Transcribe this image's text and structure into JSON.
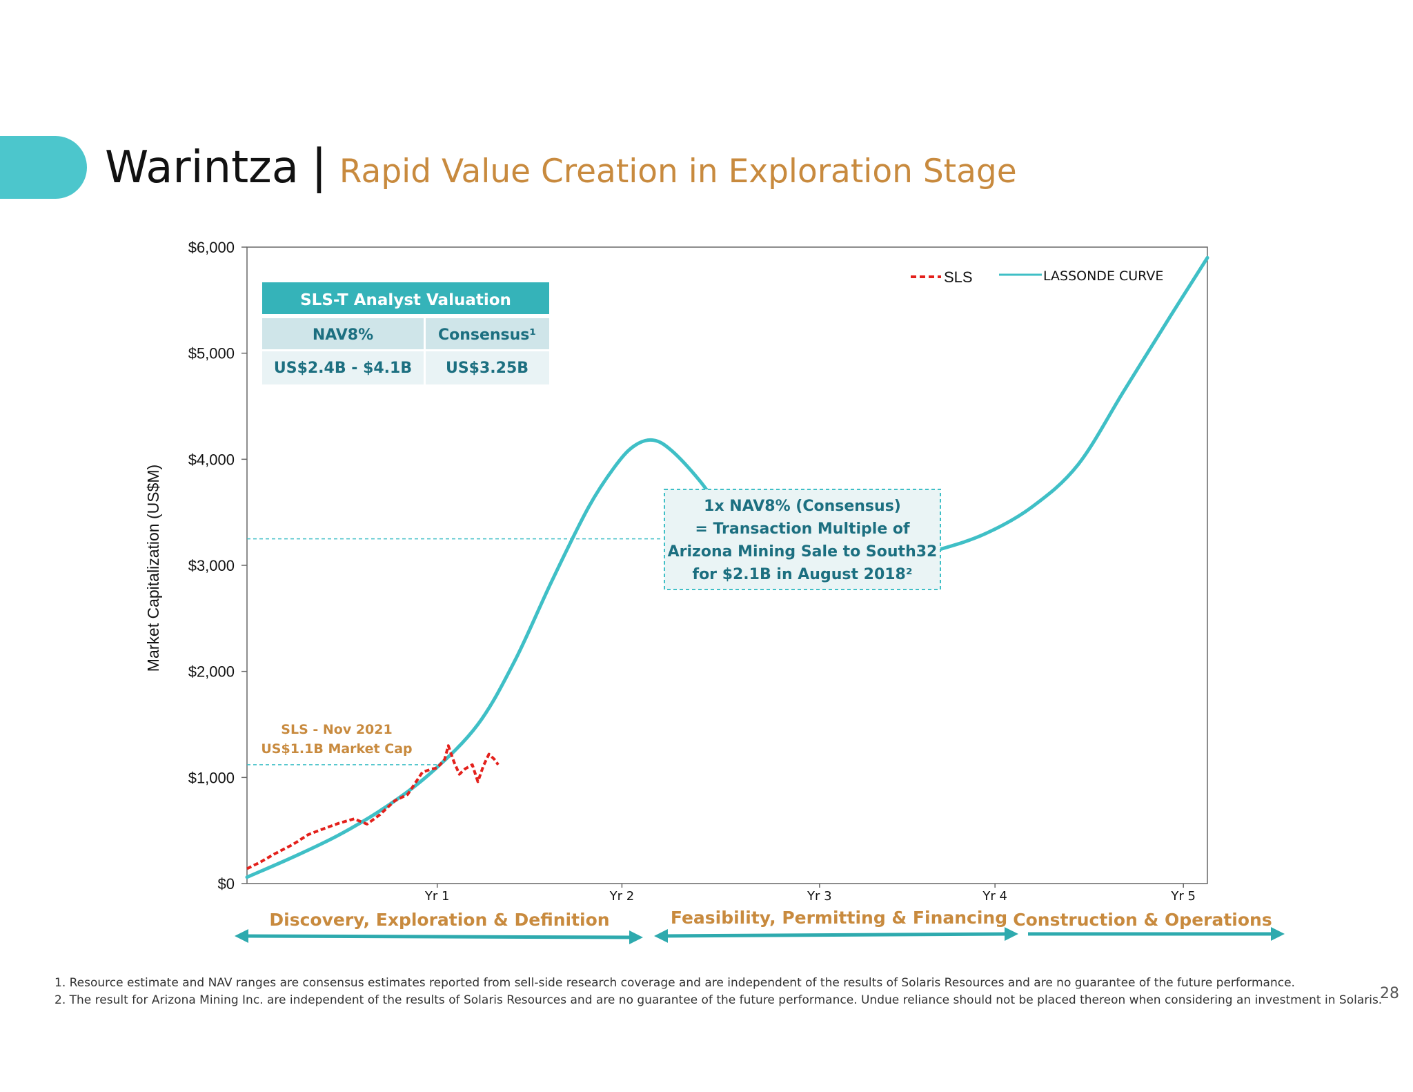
{
  "header": {
    "title": "Warintza",
    "separator": "|",
    "subtitle": "Rapid Value Creation in Exploration Stage"
  },
  "chart_data": {
    "type": "line",
    "ylabel": "Market Capitalization (US$M)",
    "ylim": [
      0,
      6000
    ],
    "xlim": [
      0,
      5.2
    ],
    "y_ticks": [
      "$0",
      "$1,000",
      "$2,000",
      "$3,000",
      "$4,000",
      "$5,000",
      "$6,000"
    ],
    "x_ticks": [
      {
        "label": "Yr 1",
        "x": 1.03
      },
      {
        "label": "Yr 2",
        "x": 2.03
      },
      {
        "label": "Yr 3",
        "x": 3.1
      },
      {
        "label": "Yr 4",
        "x": 4.05
      },
      {
        "label": "Yr 5",
        "x": 5.07
      }
    ],
    "legend_position": "top-right",
    "series": [
      {
        "name": "SLS",
        "style": "dashed",
        "color": "#e3201b",
        "x": [
          0,
          0.07,
          0.15,
          0.25,
          0.33,
          0.42,
          0.5,
          0.58,
          0.65,
          0.72,
          0.8,
          0.87,
          0.95,
          1.0,
          1.03,
          1.07,
          1.09,
          1.12,
          1.15,
          1.18,
          1.22,
          1.25,
          1.28,
          1.31,
          1.34,
          1.36
        ],
        "values": [
          140,
          200,
          280,
          370,
          460,
          520,
          570,
          610,
          560,
          650,
          780,
          840,
          1050,
          1080,
          1090,
          1170,
          1300,
          1150,
          1030,
          1080,
          1120,
          960,
          1110,
          1220,
          1170,
          1120
        ]
      },
      {
        "name": "LASSONDE CURVE",
        "style": "solid",
        "color": "#3fbfc6",
        "x": [
          0,
          0.25,
          0.5,
          0.75,
          1.0,
          1.25,
          1.45,
          1.65,
          1.85,
          2.0,
          2.1,
          2.2,
          2.3,
          2.45,
          2.6,
          2.75,
          3.0,
          3.25,
          3.5,
          3.75,
          4.0,
          4.25,
          4.5,
          4.75,
          5.0,
          5.2
        ],
        "values": [
          60,
          250,
          460,
          720,
          1050,
          1500,
          2100,
          2850,
          3550,
          3950,
          4130,
          4180,
          4080,
          3800,
          3450,
          3200,
          3020,
          3000,
          3050,
          3150,
          3300,
          3550,
          3950,
          4650,
          5350,
          5900
        ]
      }
    ],
    "reference_lines": [
      {
        "y": 1120,
        "x_end": 1.05
      },
      {
        "y": 3250,
        "x_end": 2.25
      }
    ]
  },
  "valuation_table": {
    "title": "SLS-T Analyst Valuation",
    "headers": [
      "NAV8%",
      "Consensus¹"
    ],
    "values": [
      "US$2.4B - $4.1B",
      "US$3.25B"
    ]
  },
  "annotation_sls": {
    "line1": "SLS - Nov 2021",
    "line2": "US$1.1B Market Cap"
  },
  "callout": {
    "lines": [
      "1x NAV8% (Consensus)",
      "= Transaction Multiple of",
      "Arizona Mining Sale to South32",
      "for $2.1B in August 2018²"
    ]
  },
  "phases": [
    {
      "label": "Discovery, Exploration & Definition"
    },
    {
      "label": "Feasibility, Permitting & Financing"
    },
    {
      "label": "Construction & Operations"
    }
  ],
  "colors": {
    "accent": "#4cc6cc",
    "teal_line": "#3fbfc6",
    "arrow": "#2eaaae",
    "orange": "#c88a3e",
    "table_header": "#35b3b9",
    "dark_teal_text": "#1c6f80",
    "sls_red": "#e3201b"
  },
  "footnotes": [
    "1. Resource estimate and NAV ranges are consensus estimates reported from sell-side research coverage and are independent of the results of Solaris Resources and are no guarantee of the future performance.",
    "2. The result for Arizona Mining Inc. are independent of the results of Solaris Resources and are no guarantee of the future performance. Undue reliance should not be placed thereon when considering an investment in Solaris."
  ],
  "page_number": "28"
}
